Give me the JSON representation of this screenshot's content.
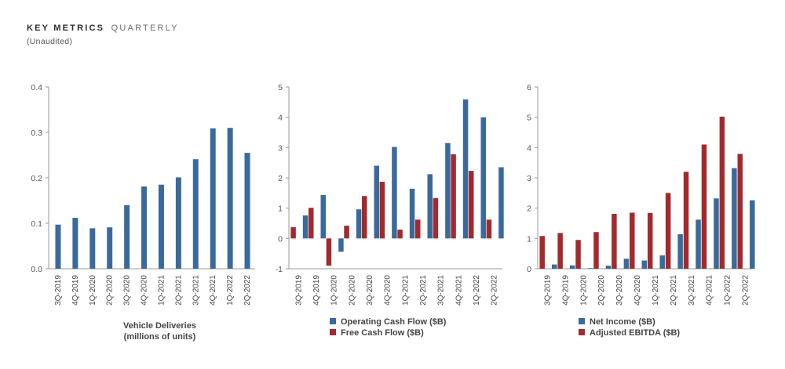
{
  "header": {
    "title_main": "KEY METRICS",
    "title_sub": "QUARTERLY",
    "subtitle": "(Unaudited)"
  },
  "colors": {
    "blue": "#3a6a9c",
    "red": "#a32a2c",
    "axis": "#9a9a9a"
  },
  "chart_data": [
    {
      "type": "bar",
      "categories": [
        "3Q-2019",
        "4Q-2019",
        "1Q-2020",
        "2Q-2020",
        "3Q-2020",
        "4Q-2020",
        "1Q-2021",
        "2Q-2021",
        "3Q-2021",
        "4Q-2021",
        "1Q-2022",
        "2Q-2022"
      ],
      "series": [
        {
          "name": "",
          "color": "#3a6a9c",
          "values": [
            0.097,
            0.112,
            0.089,
            0.091,
            0.14,
            0.181,
            0.185,
            0.201,
            0.241,
            0.309,
            0.31,
            0.255
          ]
        }
      ],
      "ylim": [
        0,
        0.4
      ],
      "yticks": [
        "0.0",
        "0.1",
        "0.2",
        "0.3",
        "0.4"
      ],
      "xlabel": [
        "Vehicle Deliveries",
        "(millions of units)"
      ],
      "legend": []
    },
    {
      "type": "bar",
      "categories": [
        "3Q-2019",
        "4Q-2019",
        "1Q-2020",
        "2Q-2020",
        "3Q-2020",
        "4Q-2020",
        "1Q-2021",
        "2Q-2021",
        "3Q-2021",
        "4Q-2021",
        "1Q-2022",
        "2Q-2022"
      ],
      "series": [
        {
          "name": "Operating Cash Flow ($B)",
          "color": "#3a6a9c",
          "values": [
            0.76,
            1.43,
            -0.44,
            0.96,
            2.4,
            3.02,
            1.64,
            2.12,
            3.15,
            4.59,
            4.0,
            2.35
          ]
        },
        {
          "name": "Free Cash Flow ($B)",
          "color": "#a32a2c",
          "values": [
            0.37,
            1.01,
            -0.9,
            0.42,
            1.4,
            1.87,
            0.29,
            0.62,
            1.33,
            2.78,
            2.23,
            0.62
          ]
        }
      ],
      "ylim": [
        -1,
        5
      ],
      "yticks": [
        "-1",
        "0",
        "1",
        "2",
        "3",
        "4",
        "5"
      ],
      "legend_position": "bottom"
    },
    {
      "type": "bar",
      "categories": [
        "3Q-2019",
        "4Q-2019",
        "1Q-2020",
        "2Q-2020",
        "3Q-2020",
        "4Q-2020",
        "1Q-2021",
        "2Q-2021",
        "3Q-2021",
        "4Q-2021",
        "1Q-2022",
        "2Q-2022"
      ],
      "series": [
        {
          "name": "Net Income ($B)",
          "color": "#3a6a9c",
          "values": [
            0.14,
            0.11,
            0.02,
            0.1,
            0.33,
            0.27,
            0.44,
            1.14,
            1.62,
            2.32,
            3.32,
            2.26
          ]
        },
        {
          "name": "Adjusted EBITDA ($B)",
          "color": "#a32a2c",
          "values": [
            1.08,
            1.18,
            0.95,
            1.21,
            1.81,
            1.85,
            1.84,
            2.5,
            3.2,
            4.1,
            5.02,
            3.79
          ]
        }
      ],
      "ylim": [
        0,
        6
      ],
      "yticks": [
        "0",
        "1",
        "2",
        "3",
        "4",
        "5",
        "6"
      ],
      "legend_position": "bottom"
    }
  ]
}
